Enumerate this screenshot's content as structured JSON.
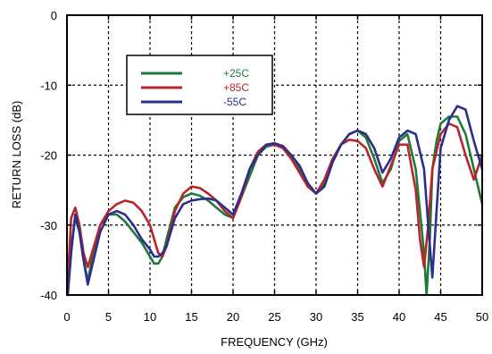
{
  "chart_data": {
    "type": "line",
    "xlabel": "FREQUENCY (GHz)",
    "ylabel": "RETURN LOSS (dB)",
    "xlim": [
      0,
      50
    ],
    "ylim": [
      -40,
      0
    ],
    "xticks": [
      0,
      5,
      10,
      15,
      20,
      25,
      30,
      35,
      40,
      45,
      50
    ],
    "yticks": [
      0,
      -10,
      -20,
      -30,
      -40
    ],
    "xtick_labels": [
      "0",
      "5",
      "10",
      "15",
      "20",
      "25",
      "30",
      "35",
      "40",
      "45",
      "50"
    ],
    "ytick_labels": [
      "0",
      "-10",
      "-20",
      "-30",
      "-40"
    ],
    "grid": "dashed",
    "legend_position": "upper-left",
    "series": [
      {
        "name": "+25C",
        "color": "#1f7a3a",
        "x": [
          0.1,
          0.5,
          1,
          1.5,
          2,
          2.5,
          3,
          4,
          5,
          6,
          7,
          8,
          9,
          10,
          10.5,
          11,
          11.5,
          12,
          13,
          14,
          15,
          16,
          17,
          18,
          19,
          20,
          21,
          22,
          23,
          24,
          25,
          26,
          27,
          28,
          29,
          30,
          31,
          32,
          33,
          34,
          35,
          36,
          37,
          38,
          39,
          40,
          41,
          42,
          42.5,
          43,
          43.3,
          43.7,
          44,
          44.5,
          45,
          46,
          47,
          48,
          49,
          50
        ],
        "y": [
          -40,
          -33,
          -29,
          -31,
          -35,
          -38,
          -35,
          -30,
          -28.5,
          -28.5,
          -29.5,
          -31,
          -32.5,
          -34.5,
          -35.5,
          -35.5,
          -34.5,
          -32,
          -27.5,
          -26,
          -25.5,
          -25.8,
          -26.5,
          -27.5,
          -28.5,
          -29,
          -26,
          -23,
          -20,
          -18.8,
          -18.5,
          -18.8,
          -20,
          -22,
          -24.5,
          -25.5,
          -24,
          -21,
          -18.5,
          -17,
          -16.5,
          -17.5,
          -20.5,
          -24,
          -22,
          -18,
          -17,
          -22,
          -28,
          -34,
          -40,
          -32,
          -22,
          -18,
          -15.5,
          -14.5,
          -14.5,
          -17,
          -22,
          -27
        ]
      },
      {
        "name": "+85C",
        "color": "#b8252a",
        "x": [
          0.1,
          0.5,
          1,
          1.5,
          2,
          2.5,
          3,
          4,
          5,
          6,
          7,
          8,
          9,
          10,
          10.5,
          11,
          11.5,
          12,
          13,
          14,
          15,
          16,
          17,
          18,
          19,
          20,
          21,
          22,
          23,
          24,
          25,
          26,
          27,
          28,
          29,
          30,
          31,
          32,
          33,
          34,
          35,
          36,
          37,
          38,
          39,
          40,
          41,
          42,
          42.5,
          43,
          43.5,
          44,
          45,
          46,
          47,
          48,
          49,
          50
        ],
        "y": [
          -38,
          -29,
          -27.5,
          -30,
          -34,
          -36,
          -34,
          -30,
          -28,
          -27,
          -26.5,
          -26.8,
          -28,
          -30,
          -32,
          -34,
          -34.5,
          -33,
          -28,
          -25.5,
          -24.5,
          -24.7,
          -25.5,
          -26.5,
          -28,
          -29,
          -26,
          -22,
          -19.5,
          -18.5,
          -18.5,
          -19,
          -20.5,
          -22.5,
          -24.5,
          -25.5,
          -23.5,
          -20.5,
          -18.5,
          -17.8,
          -18,
          -19,
          -22,
          -24.5,
          -21.5,
          -18.5,
          -18.5,
          -25,
          -32,
          -36,
          -30,
          -22,
          -17,
          -15.5,
          -16,
          -20,
          -23.5,
          -20
        ]
      },
      {
        "name": "-55C",
        "color": "#2b2e8c",
        "x": [
          0.1,
          0.5,
          1,
          1.5,
          2,
          2.5,
          3,
          4,
          5,
          6,
          7,
          8,
          9,
          10,
          10.5,
          11,
          11.5,
          12,
          13,
          14,
          15,
          16,
          17,
          18,
          19,
          20,
          21,
          22,
          23,
          24,
          25,
          26,
          27,
          28,
          29,
          30,
          31,
          32,
          33,
          34,
          35,
          36,
          37,
          38,
          39,
          40,
          41,
          42,
          43,
          43.5,
          44,
          44.5,
          45,
          46,
          47,
          48,
          49,
          50
        ],
        "y": [
          -40,
          -34,
          -28.5,
          -31,
          -35,
          -38.5,
          -36,
          -31,
          -28.5,
          -28,
          -28.5,
          -30,
          -32,
          -33.5,
          -34.5,
          -34.5,
          -34,
          -33,
          -29,
          -27,
          -26.5,
          -26.3,
          -26.2,
          -26.5,
          -27.5,
          -28.5,
          -25.5,
          -22,
          -20,
          -18.5,
          -18.3,
          -18.7,
          -20,
          -21.5,
          -24,
          -25.5,
          -24.5,
          -21,
          -18.5,
          -17,
          -16.5,
          -17,
          -19,
          -22.5,
          -20.5,
          -17.5,
          -16.5,
          -17,
          -22,
          -30,
          -37.5,
          -28,
          -19,
          -15,
          -13,
          -13.5,
          -18,
          -22
        ]
      }
    ]
  }
}
